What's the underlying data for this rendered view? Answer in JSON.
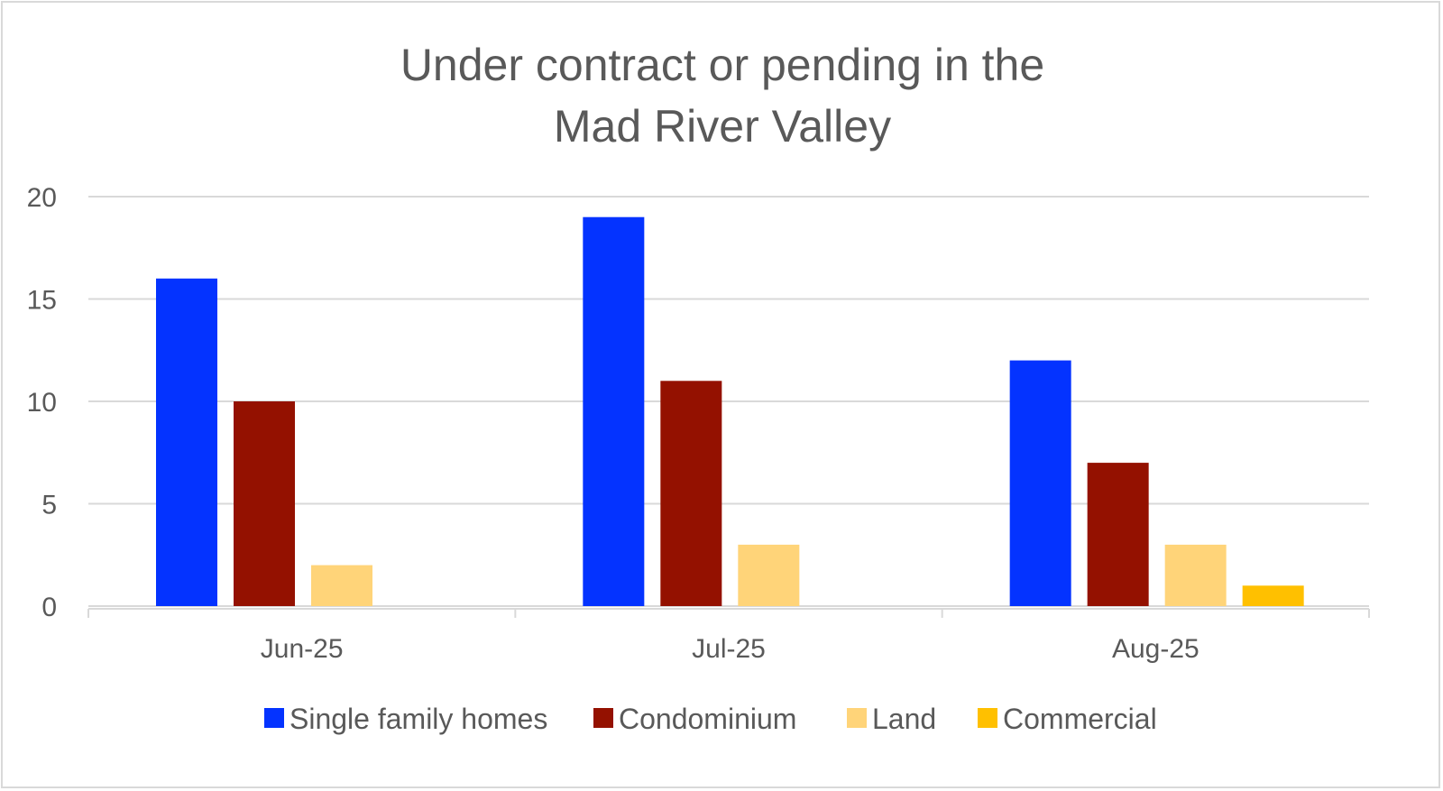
{
  "chart_data": {
    "type": "bar",
    "title": [
      "Under contract or pending in the",
      "Mad River Valley"
    ],
    "categories": [
      "Jun-25",
      "Jul-25",
      "Aug-25"
    ],
    "series": [
      {
        "name": "Single family homes",
        "color": "#0433ff",
        "values": [
          16,
          19,
          12
        ]
      },
      {
        "name": "Condominium",
        "color": "#941100",
        "values": [
          10,
          11,
          7
        ]
      },
      {
        "name": "Land",
        "color": "#ffd479",
        "values": [
          2,
          3,
          3
        ]
      },
      {
        "name": "Commercial",
        "color": "#ffc000",
        "values": [
          0,
          0,
          1
        ]
      }
    ],
    "ylim": [
      0,
      20
    ],
    "yticks": [
      0,
      5,
      10,
      15,
      20
    ],
    "xlabel": "",
    "ylabel": "",
    "grid": true,
    "legend": "bottom"
  }
}
